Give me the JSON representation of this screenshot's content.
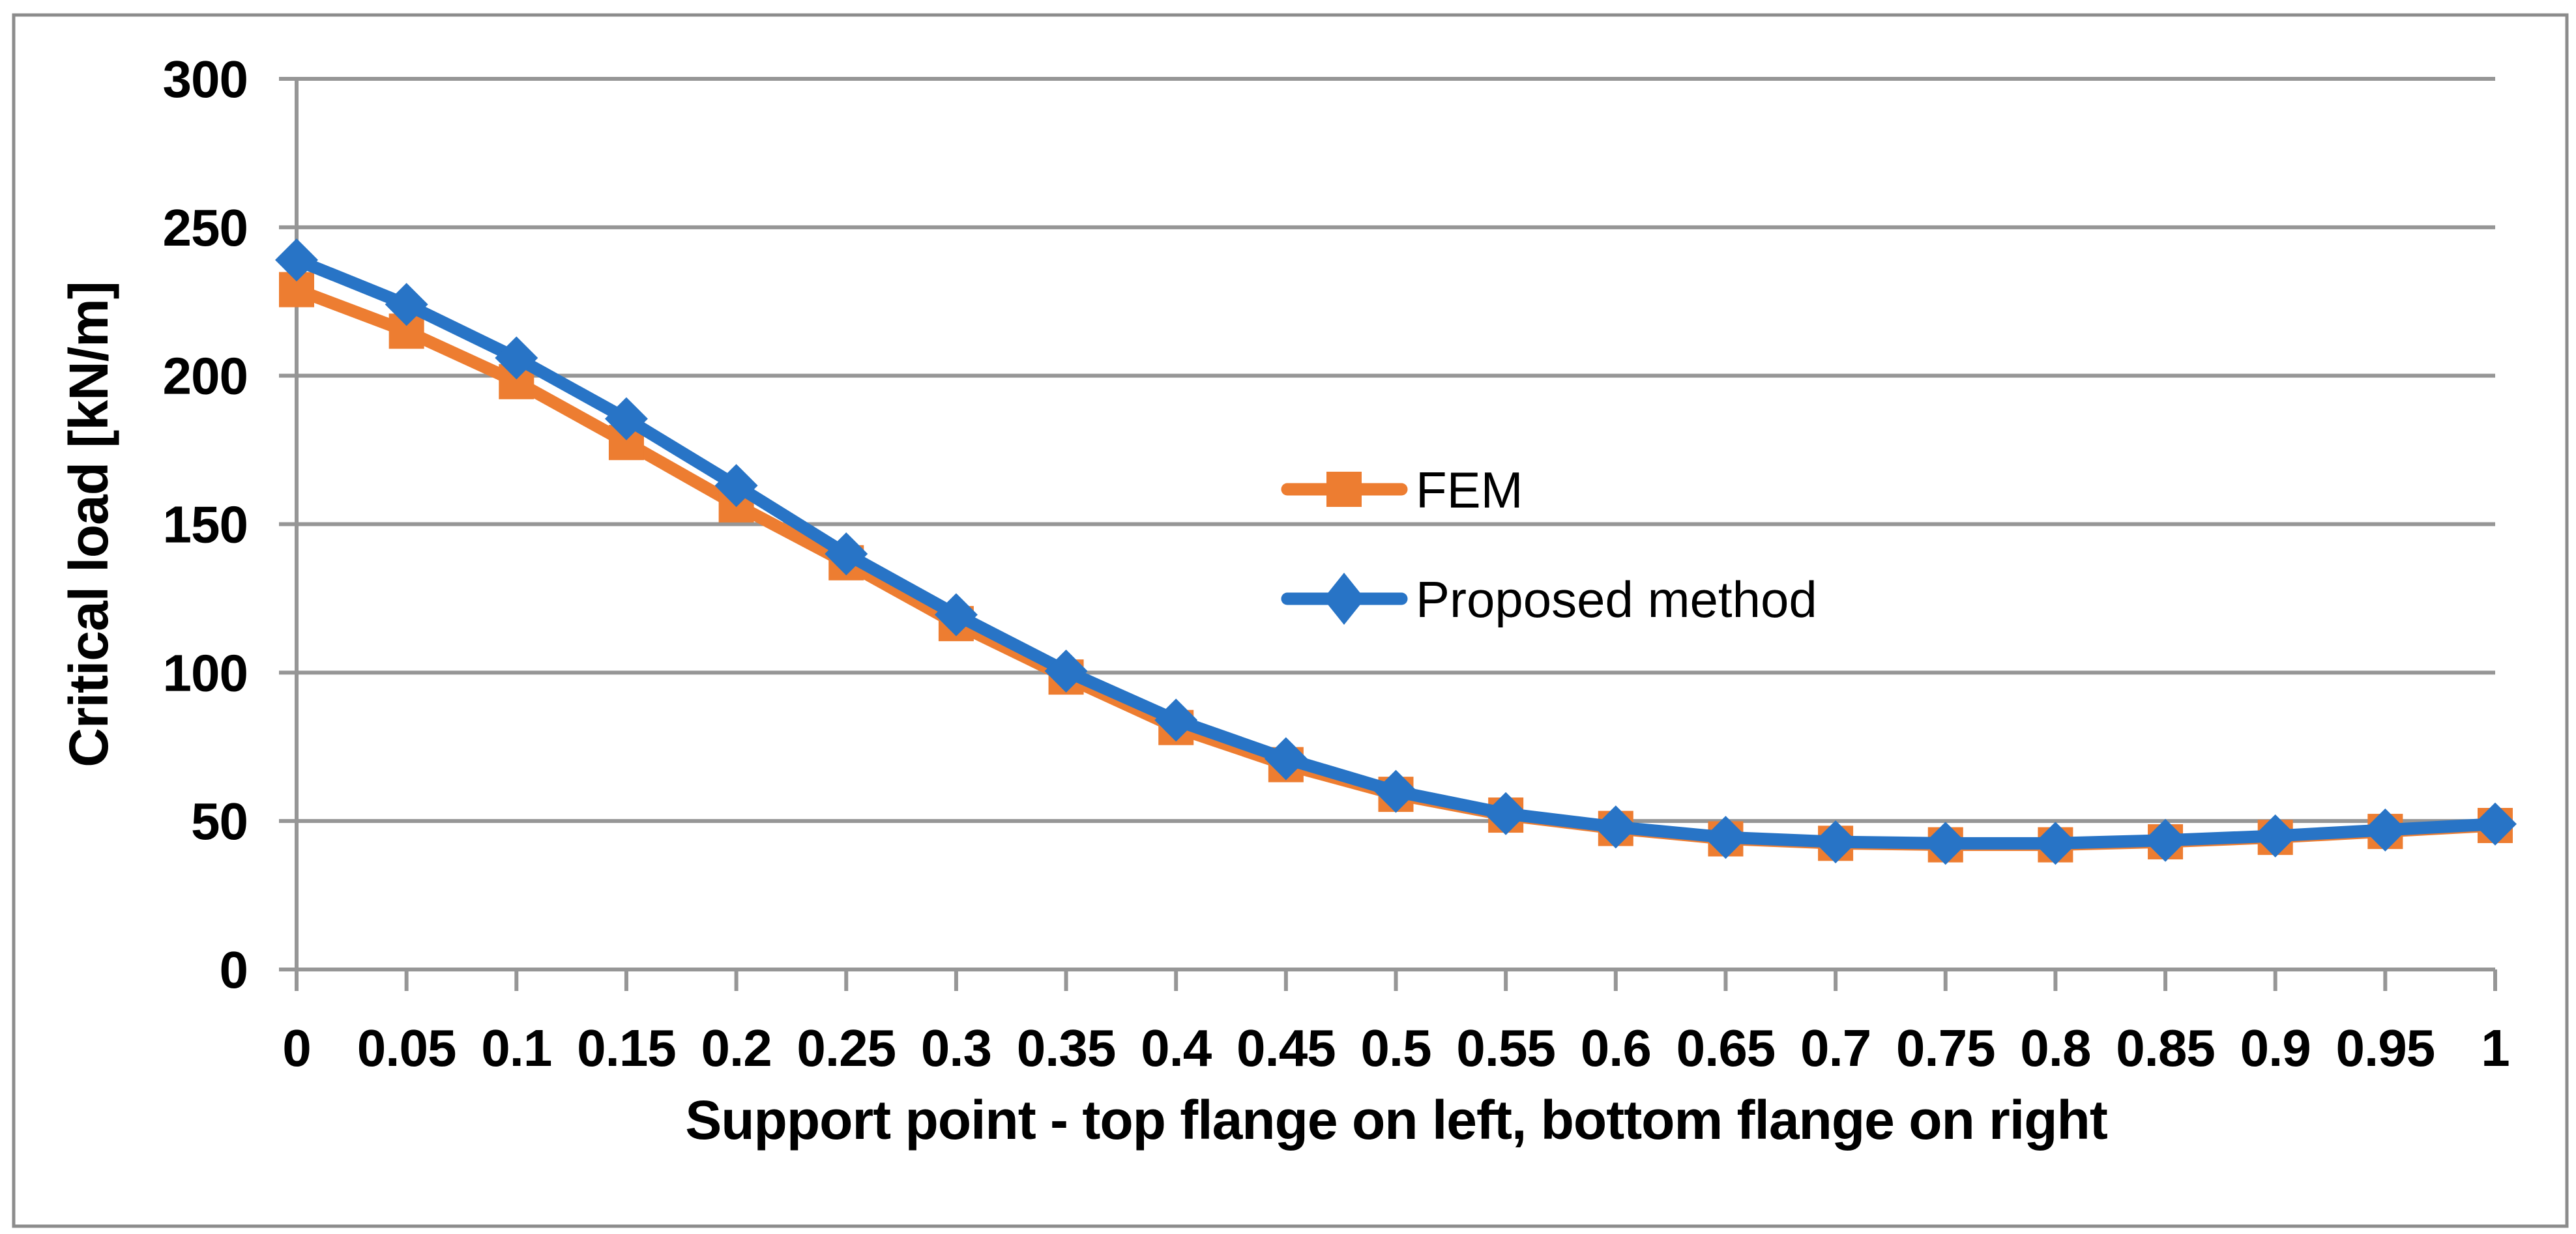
{
  "chart_data": {
    "type": "line",
    "xlabel": "Support point - top flange on left, bottom flange on right",
    "ylabel": "Critical load [kN/m]",
    "x": [
      0,
      0.05,
      0.1,
      0.15,
      0.2,
      0.25,
      0.3,
      0.35,
      0.4,
      0.45,
      0.5,
      0.55,
      0.6,
      0.65,
      0.7,
      0.75,
      0.8,
      0.85,
      0.9,
      0.95,
      1
    ],
    "x_tick_labels": [
      "0",
      "0.05",
      "0.1",
      "0.15",
      "0.2",
      "0.25",
      "0.3",
      "0.35",
      "0.4",
      "0.45",
      "0.5",
      "0.55",
      "0.6",
      "0.65",
      "0.7",
      "0.75",
      "0.8",
      "0.85",
      "0.9",
      "0.95",
      "1"
    ],
    "y_ticks": [
      0,
      50,
      100,
      150,
      200,
      250,
      300
    ],
    "y_tick_labels": [
      "0",
      "50",
      "100",
      "150",
      "200",
      "250",
      "300"
    ],
    "xlim": [
      0,
      1
    ],
    "ylim": [
      0,
      300
    ],
    "grid": true,
    "legend_position": "inside-upper-middle",
    "series": [
      {
        "name": "FEM",
        "marker": "square",
        "color": "#ED7D31",
        "values": [
          229,
          215,
          198,
          177.5,
          156.5,
          137,
          116.5,
          98.5,
          81.5,
          69,
          59,
          52,
          47.5,
          44,
          42.5,
          42,
          42,
          43,
          44.5,
          46.5,
          48.5
        ]
      },
      {
        "name": "Proposed method",
        "marker": "diamond",
        "color": "#2874C6",
        "values": [
          239,
          224,
          206,
          185.5,
          163,
          140,
          119.5,
          100.5,
          84,
          71,
          60,
          52.5,
          48,
          44.5,
          43,
          42.5,
          42.5,
          43.5,
          45,
          47,
          49
        ]
      }
    ]
  },
  "styles": {
    "grid_color": "#969696",
    "axis_color": "#969696",
    "border_color": "#8C8C8C",
    "text_color": "#000000",
    "background": "#FFFFFF"
  }
}
